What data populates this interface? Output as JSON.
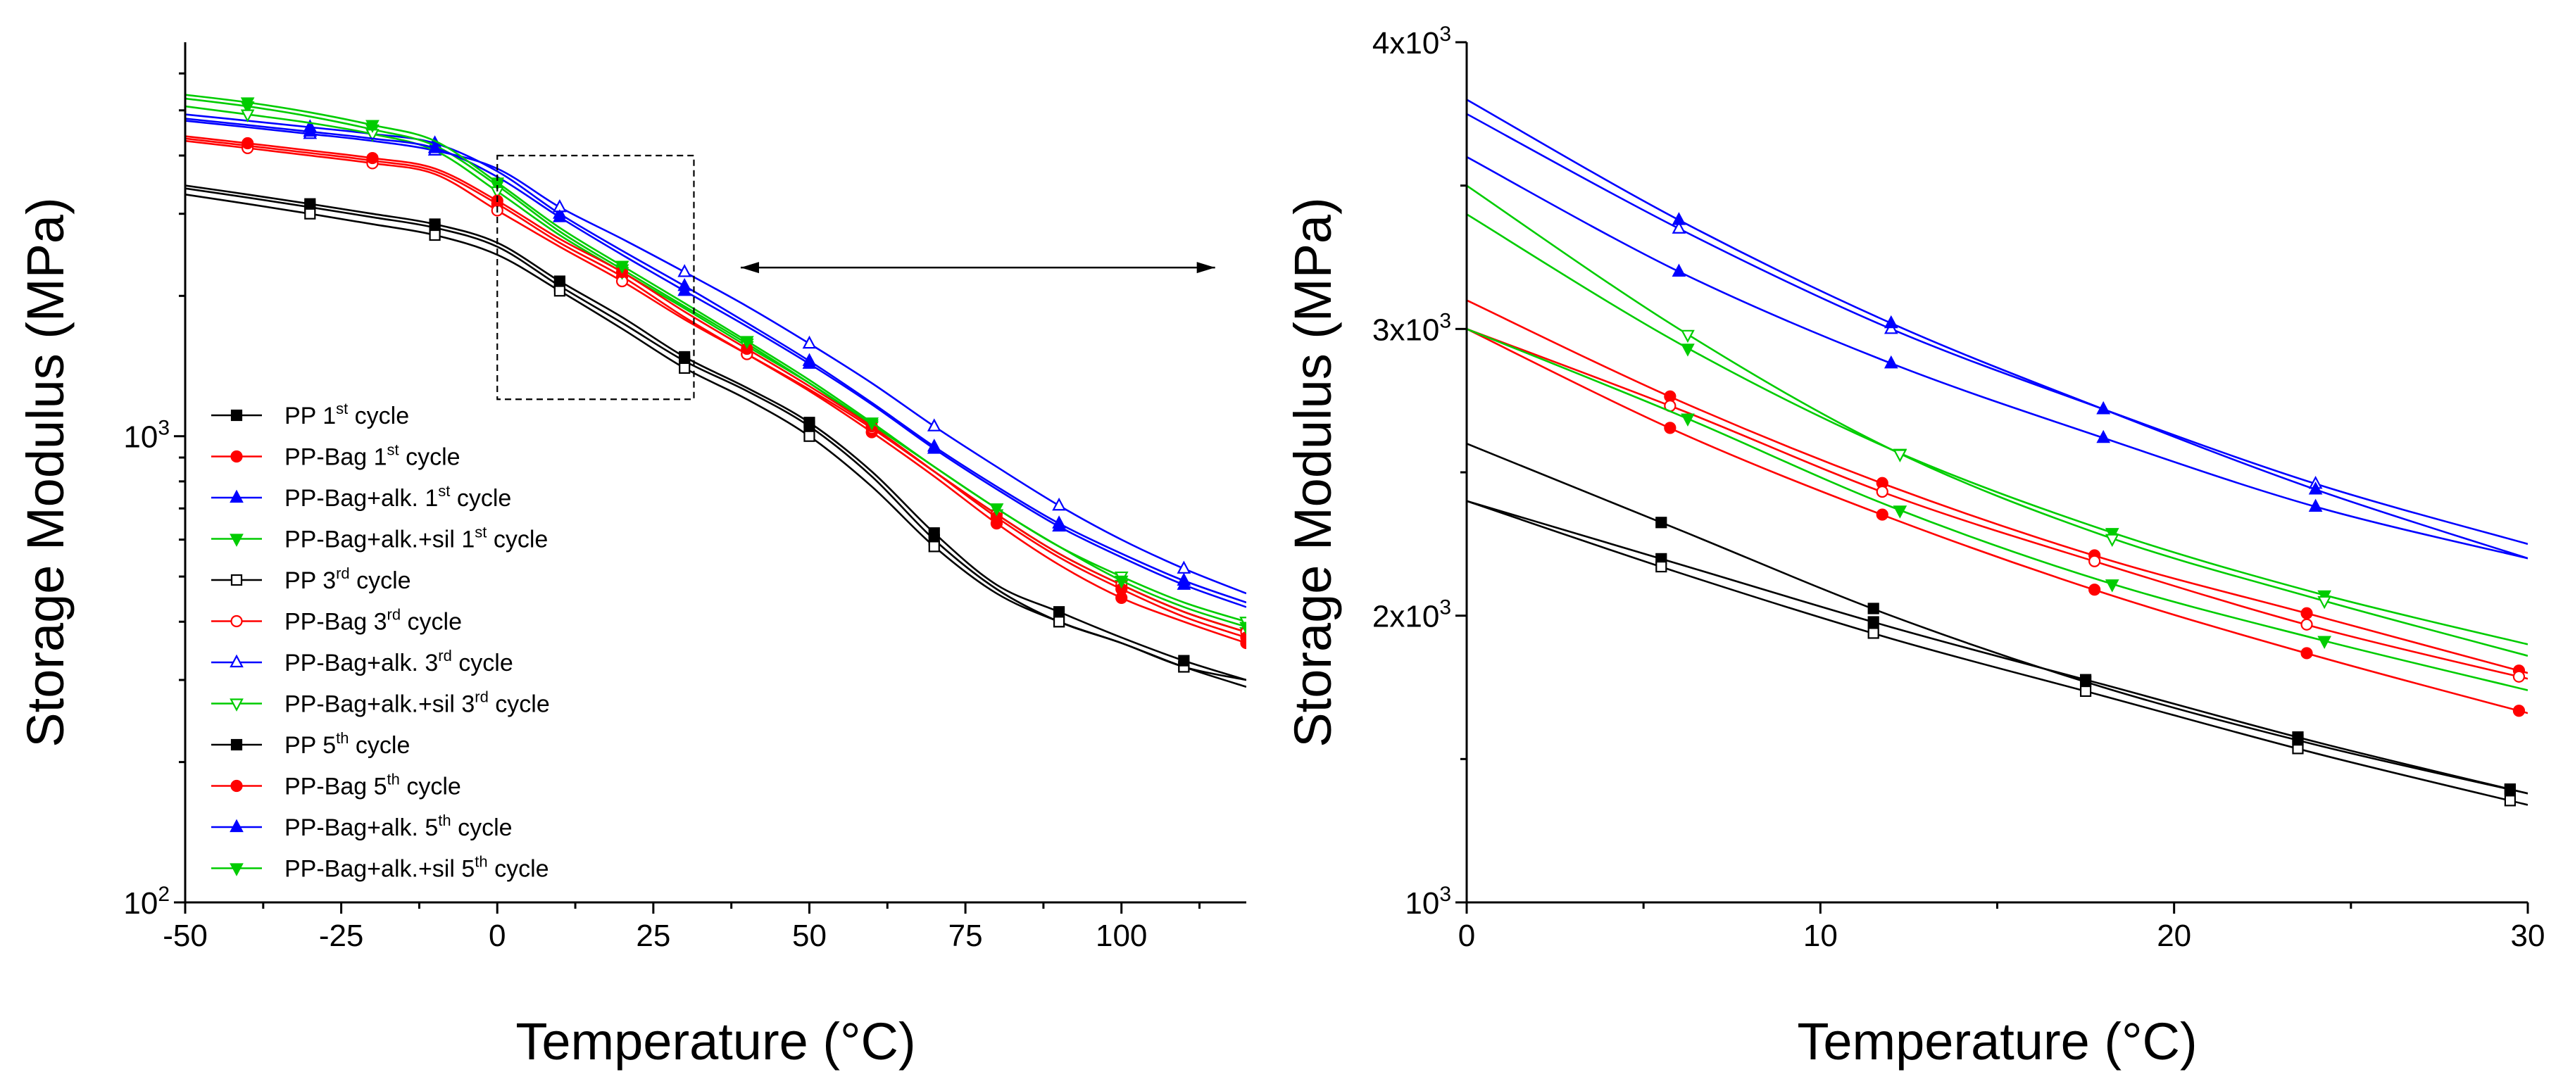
{
  "chart_data": [
    {
      "type": "line",
      "panel": "left",
      "xlabel": "Temperature (°C)",
      "ylabel": "Storage Modulus (MPa)",
      "xlim": [
        -50,
        120
      ],
      "ylim": [
        100,
        7000
      ],
      "yscale": "log",
      "xticks": [
        "-50",
        "-25",
        "0",
        "25",
        "50",
        "75",
        "100"
      ],
      "yticks": [
        {
          "base": "10",
          "exp": "2"
        },
        {
          "base": "10",
          "exp": "3"
        }
      ],
      "zoom_box": {
        "x": [
          0,
          31.5
        ],
        "y": [
          1200,
          4000
        ]
      },
      "arrow": {
        "x": [
          39,
          115
        ],
        "y": 2300
      },
      "legend": [
        {
          "base": "PP 1",
          "sup": "st",
          "rest": " cycle"
        },
        {
          "base": "PP-Bag 1",
          "sup": "st",
          "rest": " cycle"
        },
        {
          "base": "PP-Bag+alk. 1",
          "sup": "st",
          "rest": " cycle"
        },
        {
          "base": "PP-Bag+alk.+sil 1",
          "sup": "st",
          "rest": " cycle"
        },
        {
          "base": "PP 3",
          "sup": "rd",
          "rest": " cycle"
        },
        {
          "base": "PP-Bag 3",
          "sup": "rd",
          "rest": " cycle"
        },
        {
          "base": "PP-Bag+alk. 3",
          "sup": "rd",
          "rest": " cycle"
        },
        {
          "base": "PP-Bag+alk.+sil 3",
          "sup": "rd",
          "rest": " cycle"
        },
        {
          "base": "PP 5",
          "sup": "th",
          "rest": " cycle"
        },
        {
          "base": "PP-Bag 5",
          "sup": "th",
          "rest": " cycle"
        },
        {
          "base": "PP-Bag+alk. 5",
          "sup": "th",
          "rest": " cycle"
        },
        {
          "base": "PP-Bag+alk.+sil 5",
          "sup": "th",
          "rest": " cycle"
        }
      ],
      "series": [
        {
          "name": "PP 1st cycle",
          "color": "#000000",
          "marker": "square",
          "filled": true,
          "x": [
            -50,
            -40,
            -30,
            -20,
            -10,
            0,
            10,
            20,
            30,
            40,
            50,
            60,
            70,
            80,
            90,
            100,
            110,
            120
          ],
          "y": [
            3400,
            3250,
            3100,
            2950,
            2800,
            2550,
            2100,
            1750,
            1450,
            1250,
            1050,
            820,
            600,
            470,
            400,
            360,
            320,
            290
          ]
        },
        {
          "name": "PP-Bag 1st cycle",
          "color": "#ff0000",
          "marker": "circle",
          "filled": true,
          "x": [
            -50,
            -40,
            -30,
            -20,
            -10,
            0,
            10,
            20,
            30,
            40,
            50,
            60,
            70,
            80,
            90,
            100,
            110,
            120
          ],
          "y": [
            4350,
            4200,
            4050,
            3900,
            3700,
            3150,
            2600,
            2200,
            1800,
            1500,
            1250,
            1020,
            820,
            650,
            530,
            450,
            400,
            360
          ]
        },
        {
          "name": "PP-Bag+alk. 1st cycle",
          "color": "#0000ff",
          "marker": "triangle-up",
          "filled": true,
          "x": [
            -50,
            -40,
            -30,
            -20,
            -10,
            0,
            10,
            20,
            30,
            40,
            50,
            60,
            70,
            80,
            90,
            100,
            110,
            120
          ],
          "y": [
            4900,
            4750,
            4600,
            4450,
            4250,
            3700,
            3000,
            2500,
            2100,
            1750,
            1450,
            1180,
            950,
            780,
            650,
            560,
            490,
            440
          ]
        },
        {
          "name": "PP-Bag+alk.+sil 1st cycle",
          "color": "#00cc00",
          "marker": "triangle-down",
          "filled": true,
          "x": [
            -50,
            -40,
            -30,
            -20,
            -10,
            0,
            10,
            20,
            30,
            40,
            50,
            60,
            70,
            80,
            90,
            100,
            110,
            120
          ],
          "y": [
            5300,
            5100,
            4850,
            4550,
            4200,
            3450,
            2750,
            2280,
            1900,
            1580,
            1300,
            1050,
            840,
            680,
            560,
            480,
            420,
            380
          ]
        },
        {
          "name": "PP 3rd cycle",
          "color": "#000000",
          "marker": "square",
          "filled": false,
          "x": [
            -50,
            -40,
            -30,
            -20,
            -10,
            0,
            10,
            20,
            30,
            40,
            50,
            60,
            70,
            80,
            90,
            100,
            110,
            120
          ],
          "y": [
            3300,
            3150,
            3000,
            2850,
            2700,
            2450,
            2050,
            1700,
            1400,
            1200,
            1000,
            780,
            580,
            460,
            400,
            360,
            320,
            300
          ]
        },
        {
          "name": "PP-Bag 3rd cycle",
          "color": "#ff0000",
          "marker": "circle",
          "filled": false,
          "x": [
            -50,
            -40,
            -30,
            -20,
            -10,
            0,
            10,
            20,
            30,
            40,
            50,
            60,
            70,
            80,
            90,
            100,
            110,
            120
          ],
          "y": [
            4300,
            4150,
            4000,
            3850,
            3650,
            3050,
            2550,
            2150,
            1780,
            1500,
            1260,
            1040,
            840,
            680,
            560,
            480,
            420,
            380
          ]
        },
        {
          "name": "PP-Bag+alk. 3rd cycle",
          "color": "#0000ff",
          "marker": "triangle-up",
          "filled": false,
          "x": [
            -50,
            -40,
            -30,
            -20,
            -10,
            0,
            10,
            20,
            30,
            40,
            50,
            60,
            70,
            80,
            90,
            100,
            110,
            120
          ],
          "y": [
            4750,
            4600,
            4450,
            4300,
            4100,
            3750,
            3100,
            2650,
            2250,
            1900,
            1580,
            1300,
            1050,
            860,
            710,
            600,
            520,
            460
          ]
        },
        {
          "name": "PP-Bag+alk.+sil 3rd cycle",
          "color": "#00cc00",
          "marker": "triangle-down",
          "filled": false,
          "x": [
            -50,
            -40,
            -30,
            -20,
            -10,
            0,
            10,
            20,
            30,
            40,
            50,
            60,
            70,
            80,
            90,
            100,
            110,
            120
          ],
          "y": [
            5100,
            4900,
            4700,
            4450,
            4100,
            3350,
            2700,
            2250,
            1880,
            1560,
            1300,
            1060,
            860,
            700,
            580,
            500,
            440,
            400
          ]
        },
        {
          "name": "PP 5th cycle",
          "color": "#000000",
          "marker": "square",
          "filled": true,
          "x": [
            -50,
            -40,
            -30,
            -20,
            -10,
            0,
            10,
            20,
            30,
            40,
            50,
            60,
            70,
            80,
            90,
            100,
            110,
            120
          ],
          "y": [
            3450,
            3300,
            3150,
            3000,
            2850,
            2600,
            2150,
            1800,
            1480,
            1270,
            1070,
            840,
            620,
            480,
            420,
            370,
            330,
            300
          ]
        },
        {
          "name": "PP-Bag 5th cycle",
          "color": "#ff0000",
          "marker": "circle",
          "filled": true,
          "x": [
            -50,
            -40,
            -30,
            -20,
            -10,
            0,
            10,
            20,
            30,
            40,
            50,
            60,
            70,
            80,
            90,
            100,
            110,
            120
          ],
          "y": [
            4400,
            4250,
            4100,
            3950,
            3750,
            3200,
            2650,
            2250,
            1850,
            1540,
            1280,
            1050,
            840,
            670,
            550,
            470,
            410,
            370
          ]
        },
        {
          "name": "PP-Bag+alk. 5th cycle",
          "color": "#0000ff",
          "marker": "triangle-up",
          "filled": true,
          "x": [
            -50,
            -40,
            -30,
            -20,
            -10,
            0,
            10,
            20,
            30,
            40,
            50,
            60,
            70,
            80,
            90,
            100,
            110,
            120
          ],
          "y": [
            4800,
            4650,
            4500,
            4350,
            4150,
            3600,
            2950,
            2450,
            2050,
            1720,
            1430,
            1170,
            940,
            770,
            640,
            550,
            480,
            430
          ]
        },
        {
          "name": "PP-Bag+alk.+sil 5th cycle",
          "color": "#00cc00",
          "marker": "triangle-down",
          "filled": true,
          "x": [
            -50,
            -40,
            -30,
            -20,
            -10,
            0,
            10,
            20,
            30,
            40,
            50,
            60,
            70,
            80,
            90,
            100,
            110,
            120
          ],
          "y": [
            5400,
            5200,
            4950,
            4650,
            4300,
            3500,
            2800,
            2320,
            1930,
            1600,
            1320,
            1070,
            860,
            700,
            580,
            490,
            430,
            390
          ]
        }
      ]
    },
    {
      "type": "line",
      "panel": "right",
      "xlabel": "Temperature (°C)",
      "ylabel": "Storage Modulus (MPa)",
      "xlim": [
        0,
        30
      ],
      "ylim": [
        1000,
        4000
      ],
      "yscale": "linear",
      "xticks": [
        "0",
        "10",
        "20",
        "30"
      ],
      "yticks": [
        {
          "base": "10",
          "exp": "3"
        },
        {
          "base": "2x10",
          "exp": "3"
        },
        {
          "base": "3x10",
          "exp": "3"
        },
        {
          "base": "4x10",
          "exp": "3"
        }
      ],
      "series": [
        {
          "name": "PP 1st cycle",
          "color": "#000000",
          "marker": "square",
          "filled": true,
          "x": [
            0,
            6,
            12,
            18,
            24,
            30
          ],
          "y": [
            2400,
            2180,
            1960,
            1760,
            1560,
            1380
          ]
        },
        {
          "name": "PP-Bag 1st cycle",
          "color": "#ff0000",
          "marker": "circle",
          "filled": true,
          "x": [
            0,
            6,
            12,
            18,
            24,
            30
          ],
          "y": [
            3100,
            2750,
            2450,
            2200,
            2000,
            1800
          ]
        },
        {
          "name": "PP-Bag+alk. 1st cycle",
          "color": "#0000ff",
          "marker": "triangle-up",
          "filled": true,
          "x": [
            0,
            6,
            12,
            18,
            24,
            30
          ],
          "y": [
            3600,
            3200,
            2880,
            2620,
            2380,
            2200
          ]
        },
        {
          "name": "PP-Bag+alk.+sil 1st cycle",
          "color": "#00cc00",
          "marker": "triangle-down",
          "filled": true,
          "x": [
            0,
            6,
            12,
            18,
            24,
            30
          ],
          "y": [
            3400,
            2950,
            2580,
            2300,
            2080,
            1900
          ]
        },
        {
          "name": "PP 3rd cycle",
          "color": "#000000",
          "marker": "square",
          "filled": false,
          "x": [
            0,
            6,
            12,
            18,
            24,
            30
          ],
          "y": [
            2400,
            2150,
            1920,
            1720,
            1520,
            1340
          ]
        },
        {
          "name": "PP-Bag 3rd cycle",
          "color": "#ff0000",
          "marker": "circle",
          "filled": false,
          "x": [
            0,
            6,
            12,
            18,
            24,
            30
          ],
          "y": [
            3000,
            2720,
            2420,
            2180,
            1960,
            1780
          ]
        },
        {
          "name": "PP-Bag+alk. 3rd cycle",
          "color": "#0000ff",
          "marker": "triangle-up",
          "filled": false,
          "x": [
            0,
            6,
            12,
            18,
            24,
            30
          ],
          "y": [
            3750,
            3350,
            3000,
            2720,
            2460,
            2250
          ]
        },
        {
          "name": "PP-Bag+alk.+sil 3rd cycle",
          "color": "#00cc00",
          "marker": "triangle-down",
          "filled": false,
          "x": [
            0,
            6,
            12,
            18,
            24,
            30
          ],
          "y": [
            3500,
            3000,
            2580,
            2280,
            2060,
            1860
          ]
        },
        {
          "name": "PP 5th cycle",
          "color": "#000000",
          "marker": "square",
          "filled": true,
          "x": [
            0,
            6,
            12,
            18,
            24,
            30
          ],
          "y": [
            2600,
            2300,
            2000,
            1750,
            1550,
            1380
          ]
        },
        {
          "name": "PP-Bag 5th cycle",
          "color": "#ff0000",
          "marker": "circle",
          "filled": true,
          "x": [
            0,
            6,
            12,
            18,
            24,
            30
          ],
          "y": [
            3000,
            2640,
            2340,
            2080,
            1860,
            1660
          ]
        },
        {
          "name": "PP-Bag+alk. 5th cycle",
          "color": "#0000ff",
          "marker": "triangle-up",
          "filled": true,
          "x": [
            0,
            6,
            12,
            18,
            24,
            30
          ],
          "y": [
            3800,
            3380,
            3020,
            2720,
            2440,
            2200
          ]
        },
        {
          "name": "PP-Bag+alk.+sil 5th cycle",
          "color": "#00cc00",
          "marker": "triangle-down",
          "filled": true,
          "x": [
            0,
            6,
            12,
            18,
            24,
            30
          ],
          "y": [
            3000,
            2700,
            2380,
            2120,
            1920,
            1740
          ]
        }
      ]
    }
  ]
}
